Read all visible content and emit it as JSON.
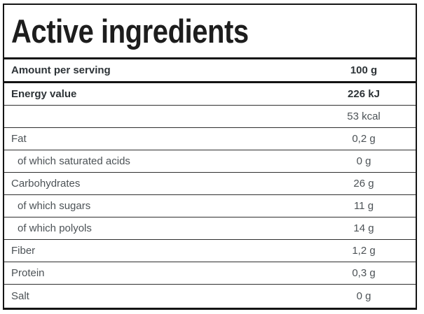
{
  "label": {
    "title": "Active ingredients",
    "rows": [
      {
        "label": "Amount per serving",
        "value": "100 g",
        "bold": true,
        "header": true
      },
      {
        "label": "Energy value",
        "value": "226 kJ",
        "bold": true
      },
      {
        "label": "",
        "value": "53 kcal"
      },
      {
        "label": "Fat",
        "value": "0,2 g"
      },
      {
        "label": "of which saturated acids",
        "value": "0 g",
        "indent": true
      },
      {
        "label": "Carbohydrates",
        "value": "26 g"
      },
      {
        "label": "of which sugars",
        "value": "11 g",
        "indent": true
      },
      {
        "label": "of which polyols",
        "value": "14 g",
        "indent": true
      },
      {
        "label": "Fiber",
        "value": "1,2 g"
      },
      {
        "label": "Protein",
        "value": "0,3 g"
      },
      {
        "label": "Salt",
        "value": "0 g"
      }
    ],
    "colors": {
      "border": "#141414",
      "row_separator": "#2e2e2e",
      "title_text": "#1d1d1d",
      "bold_text": "#2d3337",
      "regular_text": "#4c5256",
      "background": "#ffffff"
    }
  }
}
